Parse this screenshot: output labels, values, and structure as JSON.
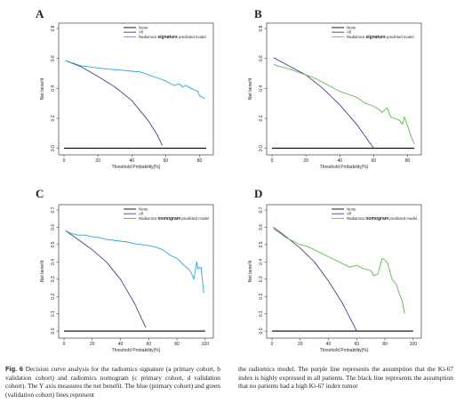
{
  "chart_data": [
    {
      "type": "line",
      "panel": "A",
      "xlabel": "Threshold Probability(%)",
      "ylabel": "Net benefit",
      "xlim": [
        0,
        85
      ],
      "ylim": [
        -0.02,
        0.8
      ],
      "xticks": [
        "0",
        "20",
        "40",
        "60",
        "80"
      ],
      "yticks": [
        "0.0",
        "0.2",
        "0.4",
        "0.6",
        "0.8"
      ],
      "legend_position": "top-right",
      "legend_emphasis": "signature",
      "series": [
        {
          "name": "None",
          "color": "#000000",
          "x": [
            0,
            84
          ],
          "y": [
            0,
            0
          ]
        },
        {
          "name": "All",
          "color": "#4a3f8f",
          "x": [
            1,
            10,
            20,
            30,
            40,
            50,
            55,
            58
          ],
          "y": [
            0.585,
            0.545,
            0.48,
            0.41,
            0.32,
            0.18,
            0.09,
            0.02
          ]
        },
        {
          "name": "Radiomics signature predicted model",
          "color": "#29a8d6",
          "x": [
            1,
            5,
            10,
            15,
            20,
            25,
            30,
            35,
            40,
            45,
            50,
            55,
            60,
            63,
            65,
            68,
            70,
            72,
            75,
            77,
            79,
            80,
            82,
            83
          ],
          "y": [
            0.585,
            0.57,
            0.55,
            0.545,
            0.535,
            0.53,
            0.525,
            0.52,
            0.515,
            0.51,
            0.49,
            0.47,
            0.45,
            0.43,
            0.42,
            0.43,
            0.41,
            0.42,
            0.4,
            0.39,
            0.38,
            0.35,
            0.34,
            0.33
          ]
        }
      ]
    },
    {
      "type": "line",
      "panel": "B",
      "xlabel": "Threshold Probability(%)",
      "ylabel": "Net benefit",
      "xlim": [
        0,
        85
      ],
      "ylim": [
        -0.02,
        0.8
      ],
      "xticks": [
        "0",
        "20",
        "40",
        "60",
        "80"
      ],
      "yticks": [
        "0.0",
        "0.2",
        "0.4",
        "0.6",
        "0.8"
      ],
      "legend_position": "top-right",
      "legend_emphasis": "signature",
      "series": [
        {
          "name": "None",
          "color": "#000000",
          "x": [
            0,
            84
          ],
          "y": [
            0,
            0
          ]
        },
        {
          "name": "All",
          "color": "#4a3f8f",
          "x": [
            1,
            10,
            20,
            30,
            40,
            50,
            55,
            60
          ],
          "y": [
            0.605,
            0.55,
            0.49,
            0.4,
            0.29,
            0.16,
            0.08,
            0.0
          ]
        },
        {
          "name": "Radiomics signature predicted model",
          "color": "#5cc04a",
          "x": [
            1,
            5,
            10,
            15,
            20,
            25,
            30,
            35,
            40,
            45,
            50,
            55,
            60,
            63,
            65,
            68,
            70,
            72,
            75,
            77,
            78,
            80,
            82,
            84
          ],
          "y": [
            0.56,
            0.545,
            0.53,
            0.51,
            0.49,
            0.47,
            0.44,
            0.41,
            0.38,
            0.36,
            0.34,
            0.3,
            0.28,
            0.26,
            0.24,
            0.27,
            0.21,
            0.2,
            0.19,
            0.16,
            0.21,
            0.15,
            0.08,
            0.03
          ]
        }
      ]
    },
    {
      "type": "line",
      "panel": "C",
      "xlabel": "Threshold Probability(%)",
      "ylabel": "Net benefit",
      "xlim": [
        0,
        102
      ],
      "ylim": [
        -0.02,
        0.7
      ],
      "xticks": [
        "0",
        "20",
        "40",
        "60",
        "80",
        "100"
      ],
      "yticks": [
        "0.0",
        "0.1",
        "0.2",
        "0.3",
        "0.4",
        "0.5",
        "0.6",
        "0.7"
      ],
      "legend_position": "top-right",
      "legend_emphasis": "nomogram",
      "series": [
        {
          "name": "None",
          "color": "#000000",
          "x": [
            0,
            100
          ],
          "y": [
            0,
            0
          ]
        },
        {
          "name": "All",
          "color": "#4a3f8f",
          "x": [
            1,
            10,
            20,
            30,
            40,
            50,
            55,
            58
          ],
          "y": [
            0.58,
            0.53,
            0.47,
            0.4,
            0.3,
            0.16,
            0.07,
            0.02
          ]
        },
        {
          "name": "Radiomics nomogram predicted model",
          "color": "#29a8d6",
          "x": [
            1,
            5,
            10,
            15,
            20,
            25,
            30,
            35,
            40,
            45,
            50,
            55,
            60,
            65,
            70,
            75,
            80,
            85,
            88,
            90,
            92,
            94,
            95,
            97,
            98,
            99
          ],
          "y": [
            0.58,
            0.565,
            0.555,
            0.555,
            0.545,
            0.54,
            0.53,
            0.525,
            0.52,
            0.515,
            0.505,
            0.5,
            0.495,
            0.485,
            0.47,
            0.44,
            0.42,
            0.38,
            0.36,
            0.34,
            0.3,
            0.4,
            0.36,
            0.37,
            0.3,
            0.22
          ]
        }
      ]
    },
    {
      "type": "line",
      "panel": "D",
      "xlabel": "Threshold Probability(%)",
      "ylabel": "Net benefit",
      "xlim": [
        0,
        102
      ],
      "ylim": [
        -0.02,
        0.7
      ],
      "xticks": [
        "0",
        "20",
        "40",
        "60",
        "80",
        "100"
      ],
      "yticks": [
        "0.0",
        "0.1",
        "0.2",
        "0.3",
        "0.4",
        "0.5",
        "0.6",
        "0.7"
      ],
      "legend_position": "top-right",
      "legend_emphasis": "nomogram",
      "series": [
        {
          "name": "None",
          "color": "#000000",
          "x": [
            0,
            100
          ],
          "y": [
            0,
            0
          ]
        },
        {
          "name": "All",
          "color": "#4a3f8f",
          "x": [
            1,
            10,
            20,
            30,
            40,
            50,
            55,
            60
          ],
          "y": [
            0.6,
            0.545,
            0.48,
            0.4,
            0.29,
            0.16,
            0.08,
            0.0
          ]
        },
        {
          "name": "Radiomics nomogram predicted model",
          "color": "#5cc04a",
          "x": [
            1,
            5,
            10,
            15,
            20,
            25,
            30,
            35,
            40,
            45,
            50,
            55,
            60,
            65,
            70,
            72,
            75,
            78,
            80,
            82,
            85,
            88,
            90,
            92,
            94
          ],
          "y": [
            0.59,
            0.57,
            0.54,
            0.52,
            0.5,
            0.49,
            0.47,
            0.45,
            0.43,
            0.41,
            0.39,
            0.37,
            0.38,
            0.36,
            0.35,
            0.32,
            0.33,
            0.42,
            0.41,
            0.39,
            0.3,
            0.27,
            0.22,
            0.18,
            0.1
          ]
        }
      ]
    }
  ],
  "caption": {
    "label": "Fig. 6",
    "left_text": " Decision curve analysis for the radiomics signature (a primary cohort, b validation cohort) and radiomics nomogram (c primary cohort, d validation cohort). The Y axis measures the net benefit. The blue (primary cohort) and green (validation cohort) lines represent",
    "right_text": "the radiomics model. The purple line represents the assumption that the Ki-67 index is highly expressed in all patients. The black line represents the assumption that no patients had a high Ki-67 index tumor"
  }
}
